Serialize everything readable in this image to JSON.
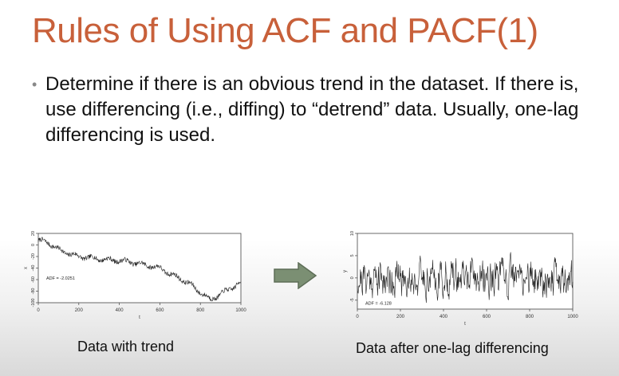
{
  "slide": {
    "title": "Rules of Using ACF and PACF(1)",
    "bullet_symbol": "•",
    "bullet": "Determine if there is an obvious trend in the dataset. If there is, use differencing (i.e., diffing) to “detrend” data. Usually, one-lag differencing is used.",
    "caption_left": "Data with trend",
    "caption_right": "Data after one-lag differencing",
    "arrow_color": "#7b8f73",
    "title_color": "#c8603a"
  },
  "chart_data": [
    {
      "type": "line",
      "xlabel": "t",
      "ylabel": "x",
      "xlim": [
        0,
        1000
      ],
      "ylim": [
        -100,
        20
      ],
      "x_ticks": [
        0,
        200,
        400,
        600,
        800,
        1000
      ],
      "y_ticks": [
        -100,
        -80,
        -60,
        -40,
        -20,
        0,
        20
      ],
      "y_tick_labels": [
        "-100",
        "-80",
        "-60",
        "-40",
        "-20",
        "0",
        "20"
      ],
      "annotation": "ADF = -2.0251",
      "x": [
        0,
        50,
        100,
        150,
        200,
        250,
        300,
        350,
        400,
        450,
        500,
        550,
        600,
        650,
        700,
        750,
        800,
        850,
        900,
        950,
        1000
      ],
      "values": [
        8,
        4,
        -8,
        -15,
        -20,
        -22,
        -24,
        -26,
        -27,
        -29,
        -33,
        -36,
        -40,
        -50,
        -58,
        -68,
        -82,
        -95,
        -85,
        -75,
        -65
      ]
    },
    {
      "type": "line",
      "xlabel": "t",
      "ylabel": "y",
      "xlim": [
        0,
        1000
      ],
      "ylim": [
        -7,
        10
      ],
      "x_ticks": [
        0,
        200,
        400,
        600,
        800,
        1000
      ],
      "y_ticks": [
        -5,
        0,
        5,
        10
      ],
      "y_tick_labels": [
        "-5",
        "0",
        "5",
        "10"
      ],
      "annotation": "ADF = -6.128"
    }
  ]
}
